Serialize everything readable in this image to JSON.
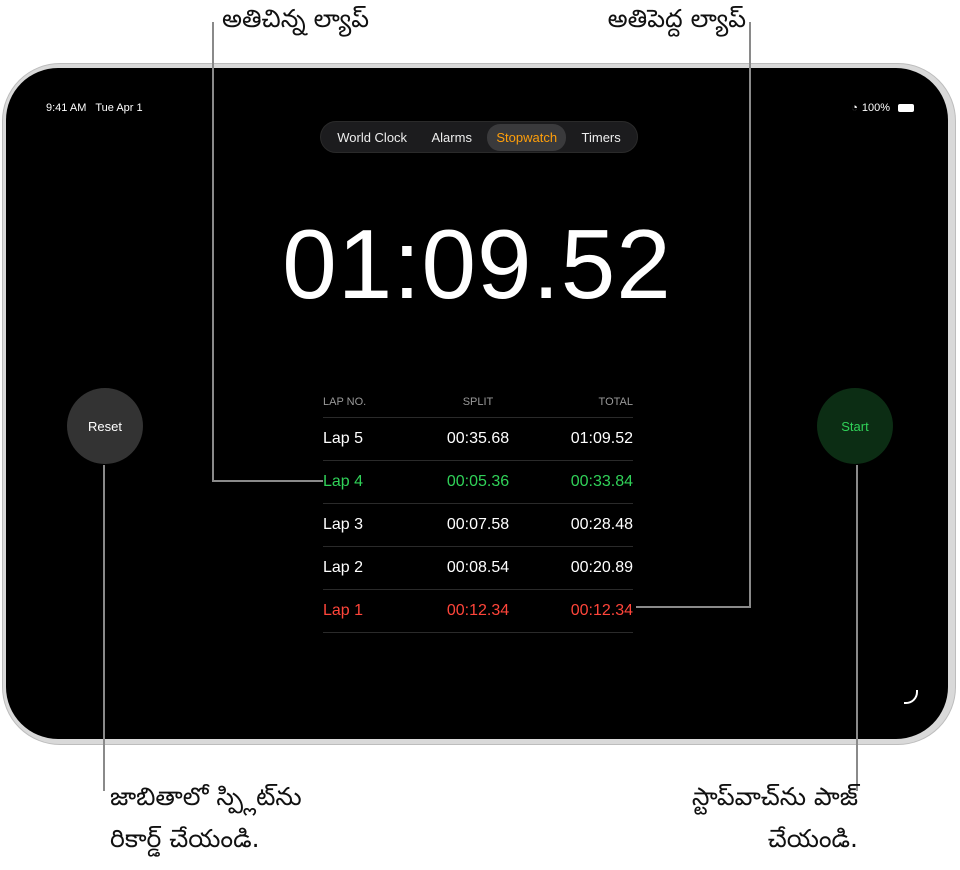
{
  "callouts": {
    "shortest_lap": "అతిచిన్న ల్యాప్",
    "longest_lap": "అతిపెద్ద ల్యాప్",
    "record_split_line1": "జాబితాలో స్ప్లిట్‌ను",
    "record_split_line2": "రికార్డ్ చేయండి.",
    "pause_line1": "స్టాప్‌వాచ్‌ను పాజ్",
    "pause_line2": "చేయండి."
  },
  "status_bar": {
    "time": "9:41 AM",
    "date": "Tue Apr 1",
    "battery": "100%"
  },
  "tabs": [
    {
      "label": "World Clock",
      "active": false
    },
    {
      "label": "Alarms",
      "active": false
    },
    {
      "label": "Stopwatch",
      "active": true
    },
    {
      "label": "Timers",
      "active": false
    }
  ],
  "stopwatch": {
    "display": "01:09.52",
    "reset_label": "Reset",
    "start_label": "Start"
  },
  "laps": {
    "headers": [
      "LAP NO.",
      "SPLIT",
      "TOTAL"
    ],
    "rows": [
      {
        "lap": "Lap 5",
        "split": "00:35.68",
        "total": "01:09.52",
        "status": "normal"
      },
      {
        "lap": "Lap 4",
        "split": "00:05.36",
        "total": "00:33.84",
        "status": "shortest"
      },
      {
        "lap": "Lap 3",
        "split": "00:07.58",
        "total": "00:28.48",
        "status": "normal"
      },
      {
        "lap": "Lap 2",
        "split": "00:08.54",
        "total": "00:20.89",
        "status": "normal"
      },
      {
        "lap": "Lap 1",
        "split": "00:12.34",
        "total": "00:12.34",
        "status": "longest"
      }
    ]
  },
  "colors": {
    "accent": "#ff9f0a",
    "shortest": "#30d158",
    "longest": "#ff453a",
    "start_bg": "#0c2d14"
  }
}
